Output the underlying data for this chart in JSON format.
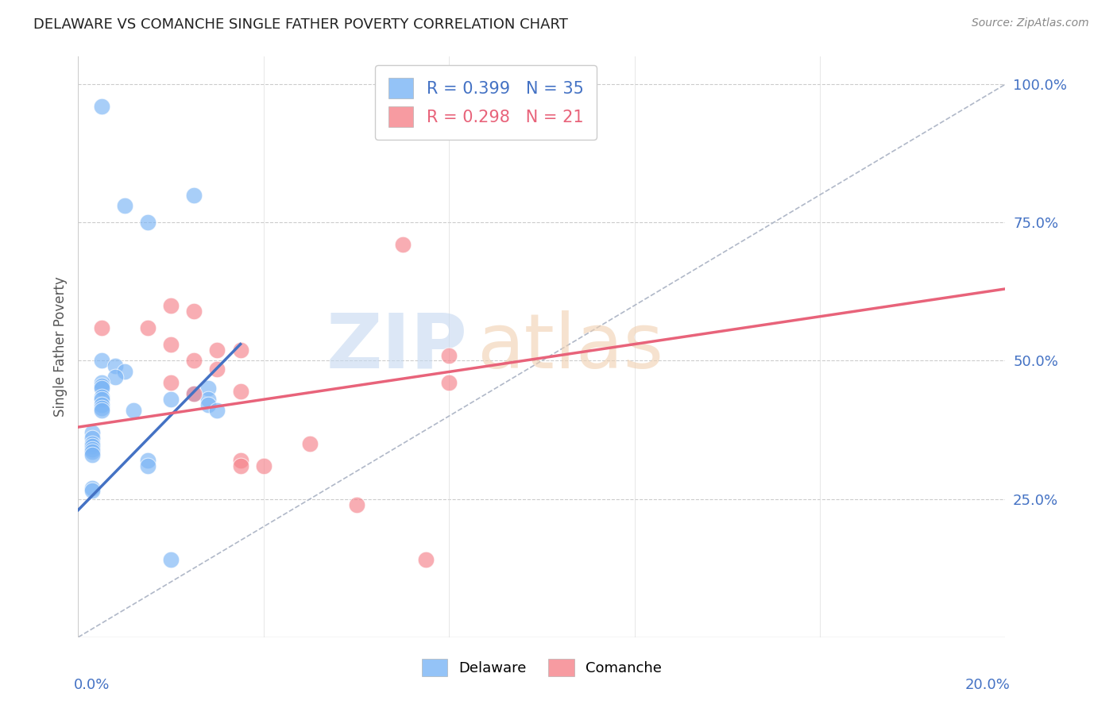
{
  "title": "DELAWARE VS COMANCHE SINGLE FATHER POVERTY CORRELATION CHART",
  "source": "Source: ZipAtlas.com",
  "ylabel": "Single Father Poverty",
  "delaware_color": "#7ab4f5",
  "comanche_color": "#f5828a",
  "delaware_scatter": [
    [
      0.5,
      96.0
    ],
    [
      1.0,
      78.0
    ],
    [
      2.5,
      80.0
    ],
    [
      1.5,
      75.0
    ],
    [
      0.5,
      50.0
    ],
    [
      0.8,
      49.0
    ],
    [
      1.0,
      48.0
    ],
    [
      0.8,
      47.0
    ],
    [
      0.5,
      46.0
    ],
    [
      0.5,
      45.5
    ],
    [
      0.5,
      45.0
    ],
    [
      0.5,
      43.5
    ],
    [
      0.5,
      43.0
    ],
    [
      0.5,
      42.0
    ],
    [
      0.5,
      41.5
    ],
    [
      0.5,
      41.0
    ],
    [
      1.2,
      41.0
    ],
    [
      2.0,
      43.0
    ],
    [
      2.5,
      44.0
    ],
    [
      2.8,
      45.0
    ],
    [
      2.8,
      43.0
    ],
    [
      2.8,
      42.0
    ],
    [
      3.0,
      41.0
    ],
    [
      0.3,
      37.0
    ],
    [
      0.3,
      36.0
    ],
    [
      0.3,
      35.0
    ],
    [
      0.3,
      34.5
    ],
    [
      0.3,
      34.0
    ],
    [
      0.3,
      33.5
    ],
    [
      0.3,
      33.0
    ],
    [
      1.5,
      32.0
    ],
    [
      1.5,
      31.0
    ],
    [
      0.3,
      27.0
    ],
    [
      0.3,
      26.5
    ],
    [
      2.0,
      14.0
    ]
  ],
  "comanche_scatter": [
    [
      0.5,
      56.0
    ],
    [
      1.5,
      56.0
    ],
    [
      2.0,
      60.0
    ],
    [
      2.5,
      59.0
    ],
    [
      2.0,
      53.0
    ],
    [
      3.0,
      52.0
    ],
    [
      3.5,
      52.0
    ],
    [
      2.5,
      50.0
    ],
    [
      3.0,
      48.5
    ],
    [
      2.0,
      46.0
    ],
    [
      2.5,
      44.0
    ],
    [
      3.5,
      44.5
    ],
    [
      3.5,
      32.0
    ],
    [
      3.5,
      31.0
    ],
    [
      4.0,
      31.0
    ],
    [
      5.0,
      35.0
    ],
    [
      6.0,
      24.0
    ],
    [
      8.0,
      46.0
    ],
    [
      7.0,
      71.0
    ],
    [
      8.0,
      51.0
    ],
    [
      7.5,
      14.0
    ]
  ],
  "delaware_line_x": [
    0.0,
    3.5
  ],
  "delaware_line_y": [
    23.0,
    53.0
  ],
  "comanche_line_x": [
    0.0,
    20.0
  ],
  "comanche_line_y": [
    38.0,
    63.0
  ],
  "diagonal_line_x": [
    0.0,
    20.0
  ],
  "diagonal_line_y": [
    0.0,
    100.0
  ],
  "xlim": [
    0.0,
    20.0
  ],
  "ylim": [
    0.0,
    105.0
  ],
  "yticks": [
    0,
    25,
    50,
    75,
    100
  ],
  "ytick_labels": [
    "",
    "25.0%",
    "50.0%",
    "75.0%",
    "100.0%"
  ],
  "xtick_vals": [
    0,
    4,
    8,
    12,
    16,
    20
  ],
  "background_color": "#ffffff",
  "title_fontsize": 13,
  "label_color": "#4472c4",
  "legend_del_R": "0.399",
  "legend_del_N": "35",
  "legend_com_R": "0.298",
  "legend_com_N": "21"
}
